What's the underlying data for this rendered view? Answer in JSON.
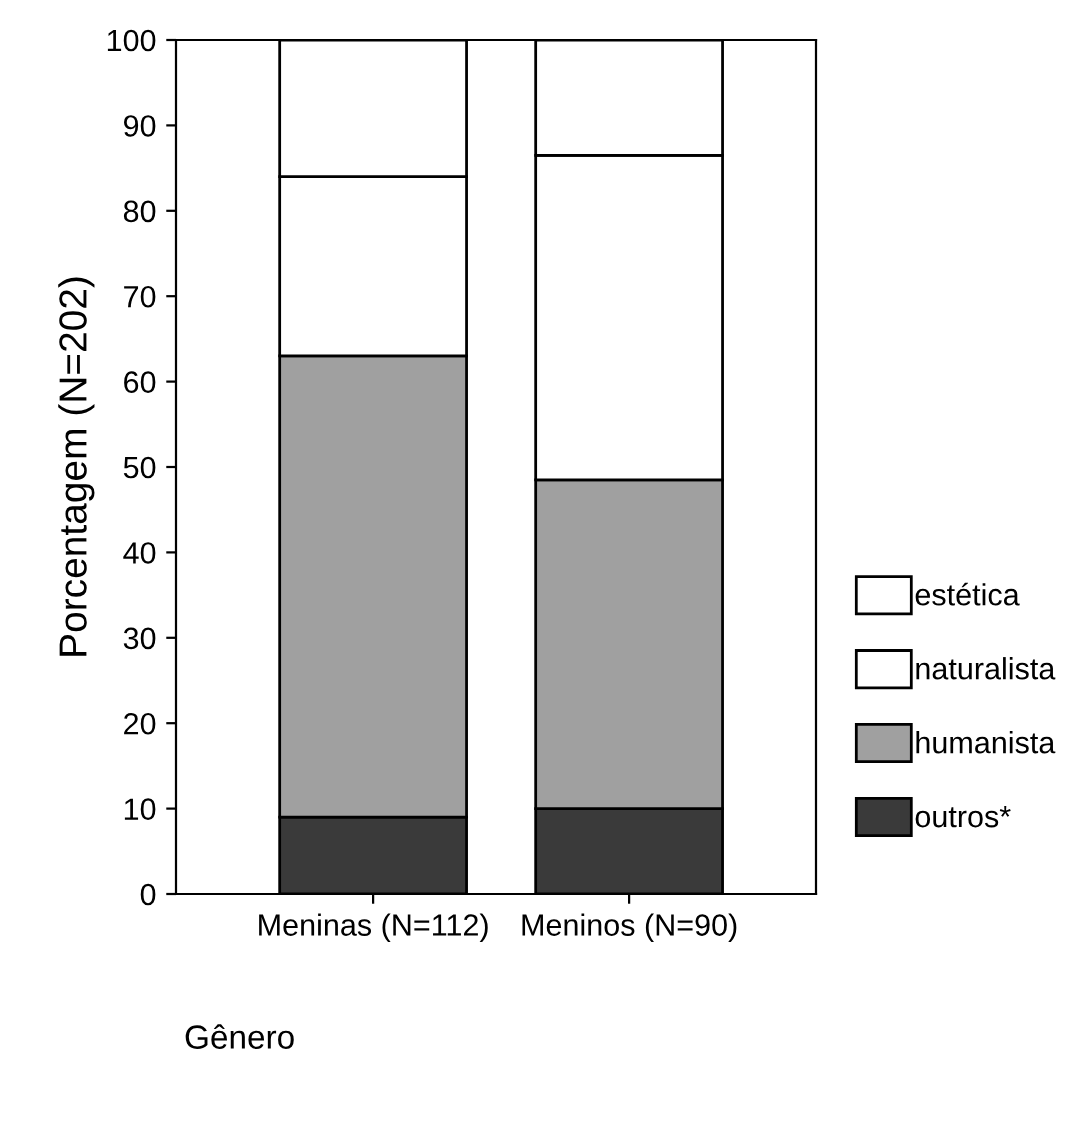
{
  "chart_data": {
    "type": "bar",
    "stacked": true,
    "xlabel": "Gênero",
    "ylabel": "Porcentagem (N=202)",
    "categories": [
      "Meninas (N=112)",
      "Meninos (N=90)"
    ],
    "series": [
      {
        "name": "outros*",
        "color": "#3a3a3a",
        "values": [
          9,
          10
        ]
      },
      {
        "name": "humanista",
        "color": "#a0a0a0",
        "values": [
          54,
          38.5
        ]
      },
      {
        "name": "naturalista",
        "color": "#ffffff",
        "values": [
          21,
          38
        ]
      },
      {
        "name": "estética",
        "color": "#ffffff",
        "values": [
          16,
          13.5
        ]
      }
    ],
    "ylim": [
      0,
      100
    ],
    "yticks": [
      0,
      10,
      20,
      30,
      40,
      50,
      60,
      70,
      80,
      90,
      100
    ],
    "grid": false,
    "legend": "right"
  }
}
